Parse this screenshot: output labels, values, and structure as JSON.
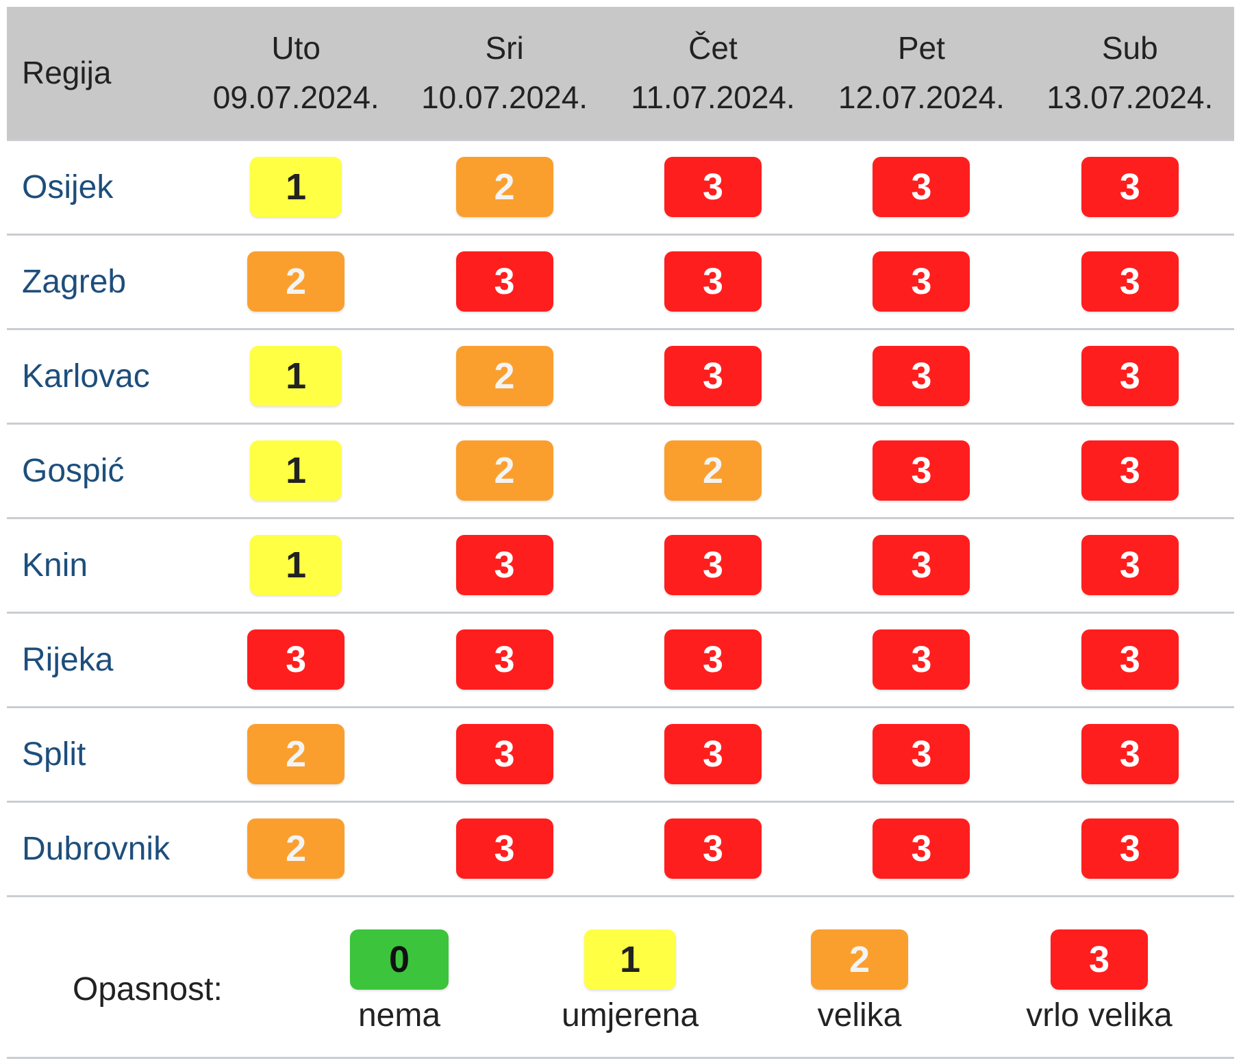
{
  "header": {
    "region_label": "Regija",
    "days": [
      {
        "name": "Uto",
        "date": "09.07.2024."
      },
      {
        "name": "Sri",
        "date": "10.07.2024."
      },
      {
        "name": "Čet",
        "date": "11.07.2024."
      },
      {
        "name": "Pet",
        "date": "12.07.2024."
      },
      {
        "name": "Sub",
        "date": "13.07.2024."
      }
    ]
  },
  "rows": [
    {
      "region": "Osijek",
      "levels": [
        "1",
        "2",
        "3",
        "3",
        "3"
      ]
    },
    {
      "region": "Zagreb",
      "levels": [
        "2",
        "3",
        "3",
        "3",
        "3"
      ]
    },
    {
      "region": "Karlovac",
      "levels": [
        "1",
        "2",
        "3",
        "3",
        "3"
      ]
    },
    {
      "region": "Gospić",
      "levels": [
        "1",
        "2",
        "2",
        "3",
        "3"
      ]
    },
    {
      "region": "Knin",
      "levels": [
        "1",
        "3",
        "3",
        "3",
        "3"
      ]
    },
    {
      "region": "Rijeka",
      "levels": [
        "3",
        "3",
        "3",
        "3",
        "3"
      ]
    },
    {
      "region": "Split",
      "levels": [
        "2",
        "3",
        "3",
        "3",
        "3"
      ]
    },
    {
      "region": "Dubrovnik",
      "levels": [
        "2",
        "3",
        "3",
        "3",
        "3"
      ]
    }
  ],
  "legend": {
    "title": "Opasnost:",
    "items": [
      {
        "level": "0",
        "label": "nema"
      },
      {
        "level": "1",
        "label": "umjerena"
      },
      {
        "level": "2",
        "label": "velika"
      },
      {
        "level": "3",
        "label": "vrlo velika"
      }
    ]
  },
  "colors": {
    "level_0": "#3cc43c",
    "level_1": "#ffff44",
    "level_2": "#fa9f2e",
    "level_3": "#ff1e1e",
    "header_bg": "#c8c8c8",
    "region_link": "#1d4e7c"
  }
}
